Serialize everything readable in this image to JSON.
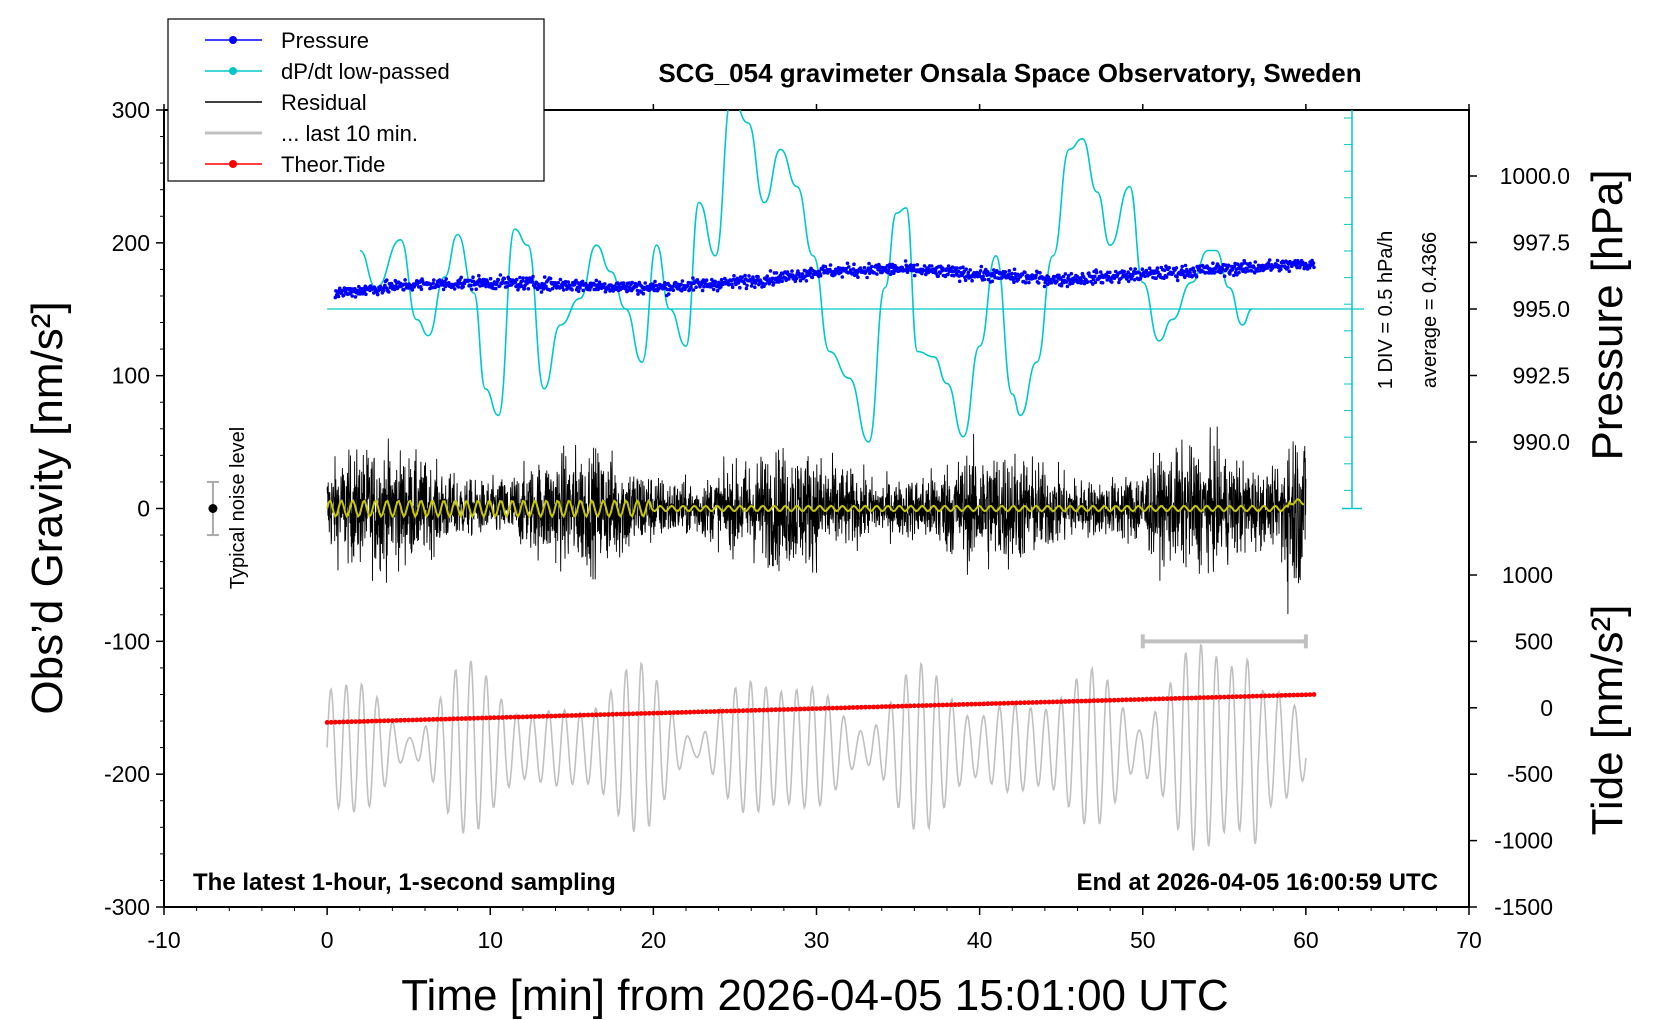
{
  "chart_data": {
    "type": "line",
    "title": "SCG_054 gravimeter Onsala Space Observatory, Sweden",
    "xlabel": "Time [min] from 2026-04-05 15:01:00 UTC",
    "ylabel": "Obs’d Gravity [nm/s²]",
    "ylabel_pressure": "Pressure [hPa]",
    "ylabel_tide": "Tide [nm/s²]",
    "xlim": [
      -10,
      70
    ],
    "ylim": [
      -300,
      300
    ],
    "pressure_lim": [
      988.0,
      1002.0
    ],
    "tide_lim": [
      -1500,
      1500
    ],
    "x_ticks": [
      -10,
      0,
      10,
      20,
      30,
      40,
      50,
      60,
      70
    ],
    "y_ticks": [
      300,
      200,
      100,
      0,
      -100,
      -200,
      -300
    ],
    "y_tick_labels": [
      "300",
      "200",
      "100",
      "0",
      "-100",
      "-200",
      "-300"
    ],
    "pressure_ticks": [
      1000.0,
      997.5,
      995.0,
      992.5,
      990.0
    ],
    "pressure_tick_labels": [
      "1000.0",
      "997.5",
      "995.0",
      "992.5",
      "990.0"
    ],
    "tide_ticks": [
      1000,
      500,
      0,
      -500,
      -1000,
      -1500
    ],
    "tide_tick_labels": [
      "1000",
      "500",
      "0",
      "-500",
      "-1000",
      "-1500"
    ],
    "legend": {
      "position": "top-left",
      "entries": [
        {
          "label": "Pressure",
          "color": "#0000ff",
          "marker": true
        },
        {
          "label": "dP/dt low-passed",
          "color": "#00c8c8",
          "marker": true
        },
        {
          "label": "Residual",
          "color": "#000000",
          "marker": false
        },
        {
          "label": "... last 10 min.",
          "color": "#c0c0c0",
          "marker": false
        },
        {
          "label": "Theor.Tide",
          "color": "#ff0000",
          "marker": true
        }
      ]
    },
    "annotations": {
      "bottom_left": "The latest 1-hour, 1-second sampling",
      "bottom_right": "End at 2026-04-05 16:00:59 UTC",
      "noise_label": "Typical noise level",
      "div_label": "1 DIV = 0.5 hPa/h",
      "average_label": "average = 0.4366"
    },
    "noise_level": {
      "x": -7,
      "center": 0,
      "halfwidth": 20
    },
    "last10_bar": {
      "x_start": 50,
      "x_end": 60,
      "y": -100
    },
    "series": [
      {
        "name": "Pressure",
        "axis": "pressure",
        "color": "#0000ff",
        "x": [
          0.5,
          5,
          10,
          15,
          20,
          25,
          28,
          30,
          35,
          40,
          45,
          50,
          55,
          60.5
        ],
        "values": [
          995.6,
          995.9,
          996.0,
          995.9,
          995.8,
          996.0,
          996.2,
          996.4,
          996.5,
          996.3,
          996.1,
          996.3,
          996.5,
          996.7
        ]
      },
      {
        "name": "dP/dt low-passed",
        "axis": "dpdt",
        "color": "#00c8c8",
        "baseline_pressure": 995.0,
        "x": [
          2.0,
          3.0,
          4.5,
          5.5,
          6.2,
          7.2,
          8.0,
          9.0,
          9.7,
          10.5,
          11.5,
          12.3,
          13.3,
          14.3,
          15.5,
          16.5,
          17.4,
          18.3,
          19.3,
          20.2,
          21.0,
          22.0,
          22.8,
          23.8,
          24.8,
          25.8,
          26.8,
          27.8,
          28.8,
          29.8,
          30.8,
          32.0,
          33.2,
          34.2,
          34.9,
          35.5,
          36.2,
          37.2,
          38.0,
          39.0,
          40.0,
          41.0,
          42.0,
          42.5,
          43.5,
          44.5,
          45.5,
          46.3,
          47.2,
          48.0,
          49.2,
          50.0,
          51.0,
          51.8,
          53.0,
          54.0,
          54.5,
          55.3,
          56.1,
          56.7
        ],
        "values": [
          1.1,
          0.4,
          1.3,
          -0.2,
          -0.5,
          0.6,
          1.4,
          0.3,
          -1.5,
          -2.0,
          1.5,
          1.2,
          -1.5,
          -0.3,
          0.2,
          1.2,
          0.7,
          0.0,
          -1.0,
          1.2,
          0.0,
          -0.7,
          2.0,
          1.0,
          4.0,
          3.5,
          2.0,
          3.0,
          2.3,
          1.0,
          -0.8,
          -1.3,
          -2.5,
          0.4,
          1.8,
          1.9,
          -0.8,
          -0.9,
          -1.4,
          -2.4,
          -0.7,
          1.0,
          -1.6,
          -2.0,
          -1.0,
          1.0,
          3.0,
          3.2,
          2.2,
          1.2,
          2.3,
          0.5,
          -0.6,
          -0.2,
          0.5,
          1.1,
          1.1,
          0.4,
          -0.3,
          0.0
        ]
      },
      {
        "name": "Residual",
        "axis": "gravity",
        "color": "#000000",
        "x_range": [
          0,
          60
        ],
        "amplitude": 40,
        "peak_amplitude": 110
      },
      {
        "name": "... last 10 min.",
        "axis": "tide",
        "color": "#c0c0c0",
        "x_range": [
          0,
          60
        ],
        "amplitude": 600
      },
      {
        "name": "Theor.Tide",
        "axis": "tide",
        "color": "#ff0000",
        "x": [
          0,
          60.5
        ],
        "values": [
          -110,
          100
        ]
      }
    ]
  }
}
